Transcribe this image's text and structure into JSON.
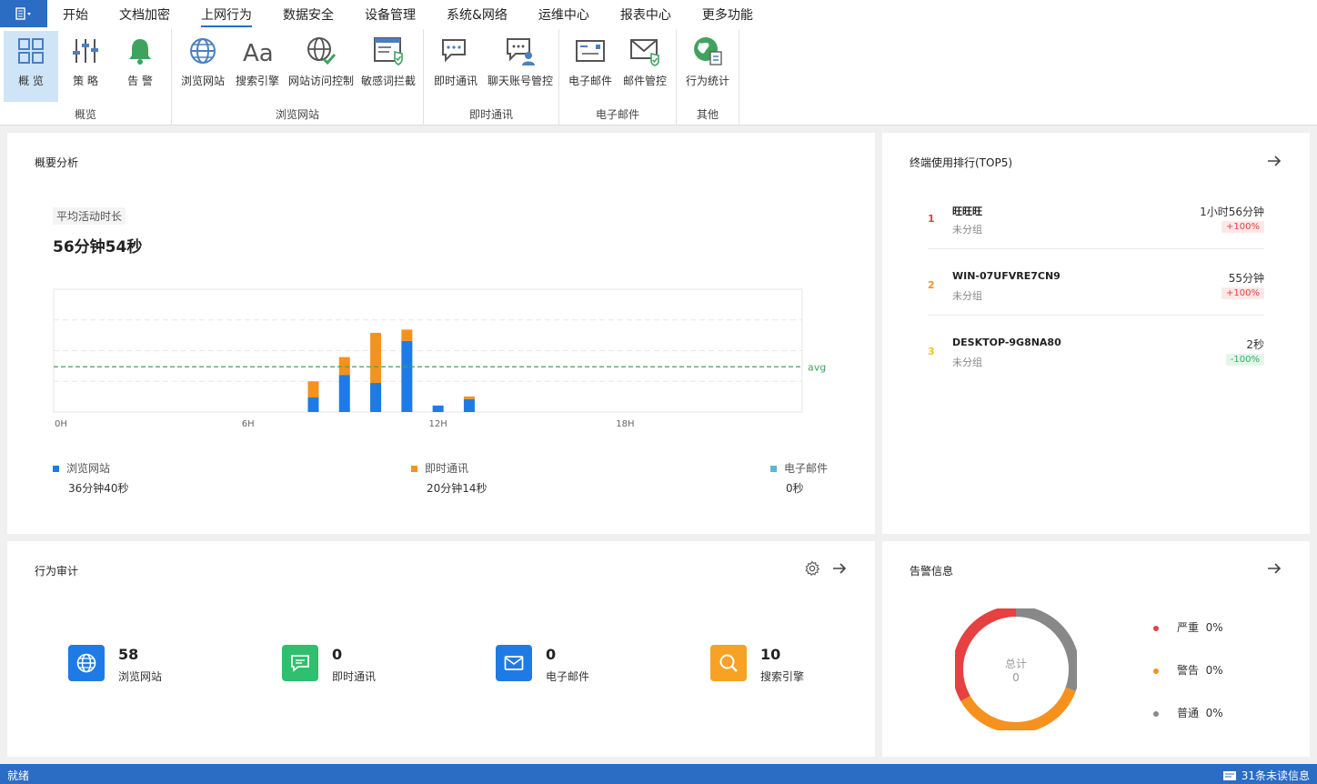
{
  "menu": {
    "app_icon": "app-menu-icon",
    "tabs": [
      "开始",
      "文档加密",
      "上网行为",
      "数据安全",
      "设备管理",
      "系统&网络",
      "运维中心",
      "报表中心",
      "更多功能"
    ],
    "active_tab": "上网行为"
  },
  "ribbon": {
    "groups": [
      {
        "label": "概览",
        "buttons": [
          {
            "label": "概 览",
            "icon": "overview-grid-icon"
          },
          {
            "label": "策 略",
            "icon": "policy-sliders-icon"
          },
          {
            "label": "告 警",
            "icon": "alarm-bell-icon"
          }
        ]
      },
      {
        "label": "浏览网站",
        "buttons": [
          {
            "label": "浏览网站",
            "icon": "globe-icon"
          },
          {
            "label": "搜索引擎",
            "icon": "search-engine-aa-icon"
          },
          {
            "label": "网站访问控制",
            "icon": "web-access-control-icon"
          },
          {
            "label": "敏感词拦截",
            "icon": "sensitive-word-block-icon"
          }
        ]
      },
      {
        "label": "即时通讯",
        "buttons": [
          {
            "label": "即时通讯",
            "icon": "chat-bubble-icon"
          },
          {
            "label": "聊天账号管控",
            "icon": "chat-account-control-icon"
          }
        ]
      },
      {
        "label": "电子邮件",
        "buttons": [
          {
            "label": "电子邮件",
            "icon": "email-icon"
          },
          {
            "label": "邮件管控",
            "icon": "email-control-icon"
          }
        ]
      },
      {
        "label": "其他",
        "buttons": [
          {
            "label": "行为统计",
            "icon": "behavior-stats-icon"
          }
        ]
      }
    ]
  },
  "overview": {
    "title": "概要分析",
    "avg_label": "平均活动时长",
    "avg_value": "56分钟54秒",
    "avg_line_label": "avg",
    "legend": [
      {
        "name": "浏览网站",
        "value": "36分钟40秒",
        "color": "#1e7be6"
      },
      {
        "name": "即时通讯",
        "value": "20分钟14秒",
        "color": "#f5921e"
      },
      {
        "name": "电子邮件",
        "value": "0秒",
        "color": "#5ab8d6"
      }
    ]
  },
  "chart_data": {
    "type": "bar",
    "stacked": true,
    "x_ticks": [
      "0H",
      "6H",
      "12H",
      "18H"
    ],
    "hours": [
      8,
      9,
      10,
      11,
      12,
      13
    ],
    "series": [
      {
        "name": "浏览网站",
        "color": "#1e7be6",
        "values": [
          0.45,
          1.15,
          0.9,
          2.2,
          0.2,
          0.4
        ]
      },
      {
        "name": "即时通讯",
        "color": "#f5921e",
        "values": [
          0.5,
          0.55,
          1.55,
          0.35,
          0,
          0.08
        ]
      },
      {
        "name": "电子邮件",
        "color": "#5ab8d6",
        "values": [
          0,
          0,
          0,
          0,
          0,
          0
        ]
      }
    ],
    "avg": 1.4,
    "ymax": 3.8,
    "xlim": [
      0,
      24
    ],
    "grid": true
  },
  "top5": {
    "title": "终端使用排行(TOP5)",
    "items": [
      {
        "rank": "1",
        "name": "旺旺旺",
        "group": "未分组",
        "time": "1小时56分钟",
        "change": "+100%",
        "trend": "up",
        "rank_color": "#e04343"
      },
      {
        "rank": "2",
        "name": "WIN-07UFVRE7CN9",
        "group": "未分组",
        "time": "55分钟",
        "change": "+100%",
        "trend": "up",
        "rank_color": "#f5921e"
      },
      {
        "rank": "3",
        "name": "DESKTOP-9G8NA80",
        "group": "未分组",
        "time": "2秒",
        "change": "-100%",
        "trend": "down",
        "rank_color": "#f5c21e"
      }
    ]
  },
  "audit": {
    "title": "行为审计",
    "items": [
      {
        "count": "58",
        "label": "浏览网站",
        "icon": "globe-icon",
        "color": "#1e7be6"
      },
      {
        "count": "0",
        "label": "即时通讯",
        "icon": "chat-icon",
        "color": "#2fbf6e"
      },
      {
        "count": "0",
        "label": "电子邮件",
        "icon": "mail-icon",
        "color": "#1e7be6"
      },
      {
        "count": "10",
        "label": "搜索引擎",
        "icon": "search-icon",
        "color": "#f7a125"
      }
    ]
  },
  "alarm": {
    "title": "告警信息",
    "total_label": "总计",
    "total_value": "0",
    "legend": [
      {
        "name": "严重",
        "percent": "0%",
        "color": "#e54141"
      },
      {
        "name": "警告",
        "percent": "0%",
        "color": "#f5921e"
      },
      {
        "name": "普通",
        "percent": "0%",
        "color": "#888888"
      }
    ]
  },
  "status": {
    "left": "就绪",
    "right": "31条未读信息",
    "right_icon": "message-icon"
  }
}
